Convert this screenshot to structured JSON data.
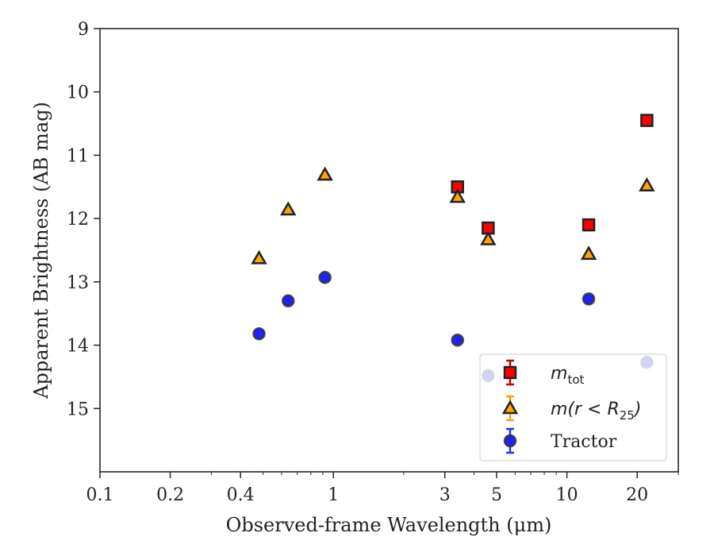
{
  "chart_data": {
    "type": "scatter",
    "title": "",
    "xlabel": "Observed-frame Wavelength (μm)",
    "ylabel": "Apparent Brightness (AB mag)",
    "x_scale": "log",
    "xlim": [
      0.1,
      30
    ],
    "ylim": [
      16,
      9
    ],
    "y_inverted": true,
    "x_ticks": [
      {
        "value": 0.1,
        "label": "0.1"
      },
      {
        "value": 0.2,
        "label": "0.2"
      },
      {
        "value": 0.4,
        "label": "0.4"
      },
      {
        "value": 1,
        "label": "1"
      },
      {
        "value": 3,
        "label": "3"
      },
      {
        "value": 5,
        "label": "5"
      },
      {
        "value": 10,
        "label": "10"
      },
      {
        "value": 20,
        "label": "20"
      }
    ],
    "y_ticks": [
      {
        "value": 9,
        "label": "9"
      },
      {
        "value": 10,
        "label": "10"
      },
      {
        "value": 11,
        "label": "11"
      },
      {
        "value": 12,
        "label": "12"
      },
      {
        "value": 13,
        "label": "13"
      },
      {
        "value": 14,
        "label": "14"
      },
      {
        "value": 15,
        "label": "15"
      }
    ],
    "grid": false,
    "legend_position": "lower right",
    "series": [
      {
        "name": "m_tot",
        "legend": {
          "base": "m",
          "sub": "tot",
          "suffix": ""
        },
        "marker": "square",
        "color": "#ff0000",
        "edgecolor": "#222222",
        "errcolor": "#cc0000",
        "points": [
          {
            "x": 3.4,
            "y": 11.5
          },
          {
            "x": 4.6,
            "y": 12.15
          },
          {
            "x": 12.4,
            "y": 12.1
          },
          {
            "x": 22.0,
            "y": 10.45
          }
        ]
      },
      {
        "name": "m(r<R25)",
        "legend": {
          "base": "m(r < R",
          "sub": "25",
          "suffix": ")"
        },
        "marker": "triangle",
        "color": "#ffa500",
        "edgecolor": "#222222",
        "errcolor": "#f5a300",
        "points": [
          {
            "x": 0.48,
            "y": 12.63
          },
          {
            "x": 0.64,
            "y": 11.86
          },
          {
            "x": 0.92,
            "y": 11.31
          },
          {
            "x": 3.4,
            "y": 11.66
          },
          {
            "x": 4.6,
            "y": 12.33
          },
          {
            "x": 12.4,
            "y": 12.56
          },
          {
            "x": 22.0,
            "y": 11.48
          }
        ]
      },
      {
        "name": "Tractor",
        "legend": {
          "base": "Tractor",
          "sub": "",
          "suffix": ""
        },
        "marker": "circle",
        "color": "#2020ff",
        "edgecolor": "#333333",
        "errcolor": "#2a2aee",
        "points": [
          {
            "x": 0.48,
            "y": 13.82
          },
          {
            "x": 0.64,
            "y": 13.3
          },
          {
            "x": 0.92,
            "y": 12.93
          },
          {
            "x": 3.4,
            "y": 13.92
          },
          {
            "x": 4.6,
            "y": 14.48
          },
          {
            "x": 12.4,
            "y": 13.27
          },
          {
            "x": 22.0,
            "y": 14.27
          }
        ]
      }
    ]
  }
}
